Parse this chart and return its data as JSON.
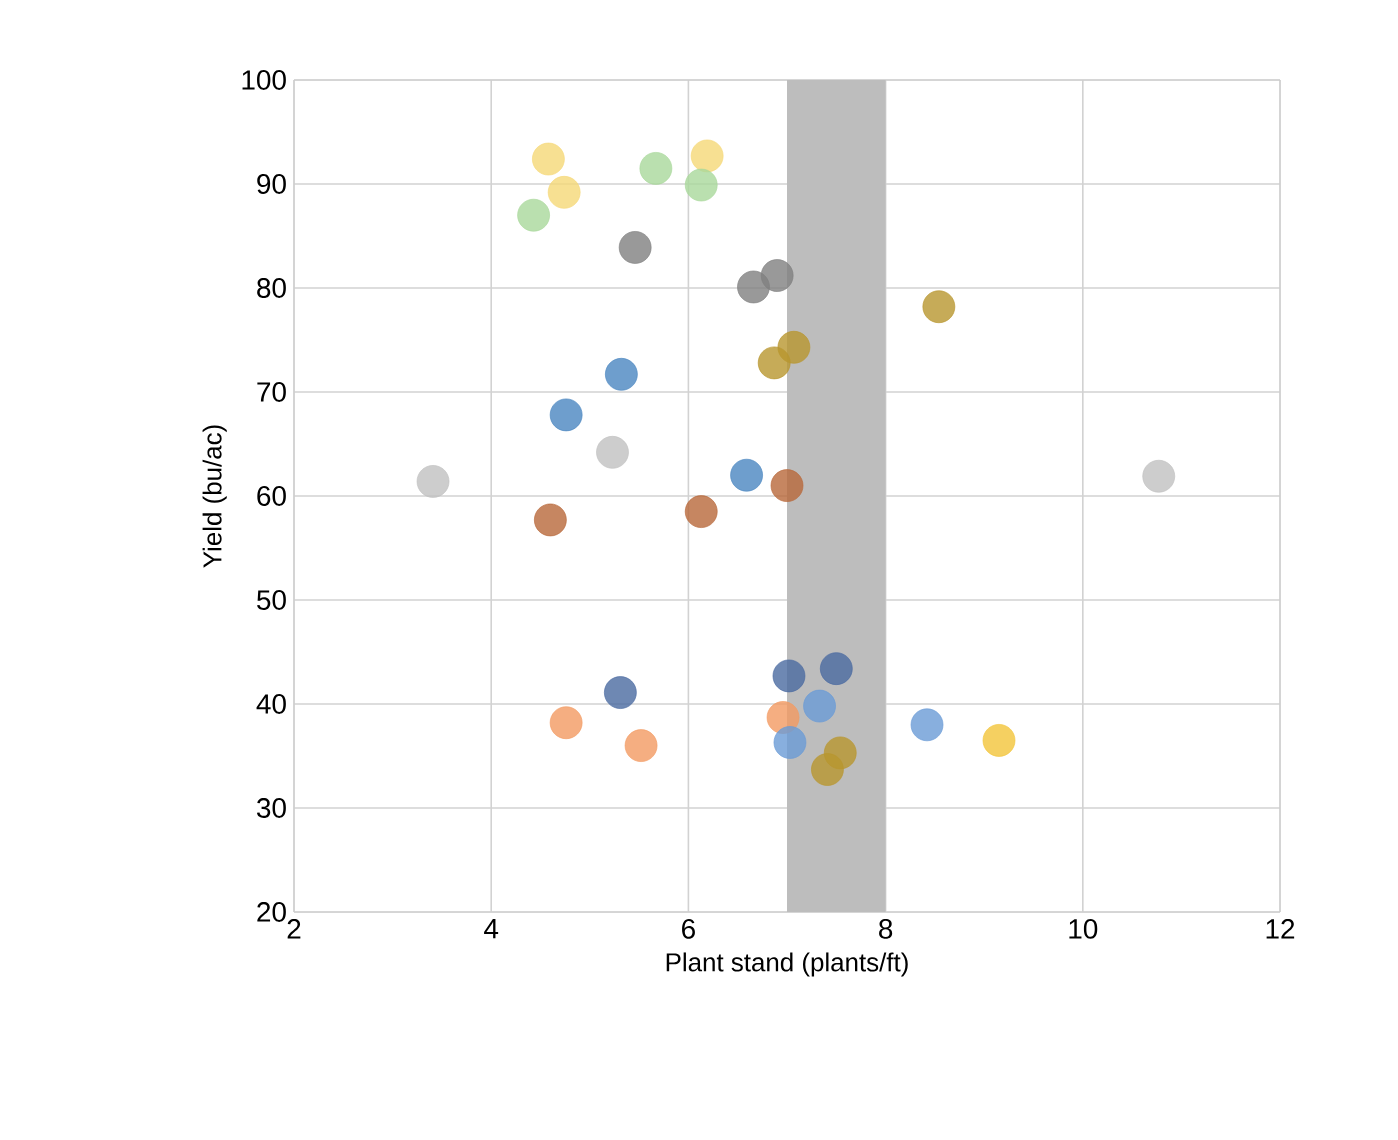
{
  "chart_data": {
    "type": "scatter",
    "xlabel": "Plant stand (plants/ft)",
    "ylabel": "Yield (bu/ac)",
    "xlim": [
      2,
      12
    ],
    "ylim": [
      20,
      100
    ],
    "xticks": [
      2,
      4,
      6,
      8,
      10,
      12
    ],
    "yticks": [
      20,
      30,
      40,
      50,
      60,
      70,
      80,
      90,
      100
    ],
    "grid": true,
    "marker": "circle",
    "bands": [
      {
        "axis": "x",
        "from": 7,
        "to": 8,
        "color": "#bdbdbd"
      }
    ],
    "series": [
      {
        "color": "#f5d877",
        "x": [
          4.58,
          4.74,
          6.19
        ],
        "values": [
          92.4,
          89.2,
          92.7
        ]
      },
      {
        "color": "#a9d89b",
        "x": [
          4.43,
          5.67,
          6.13
        ],
        "values": [
          87.0,
          91.5,
          89.9
        ]
      },
      {
        "color": "#808080",
        "x": [
          5.46,
          6.9,
          6.66
        ],
        "values": [
          83.9,
          81.2,
          80.1
        ]
      },
      {
        "color": "#b8962e",
        "x": [
          7.07,
          6.87,
          8.54,
          7.54,
          7.41
        ],
        "values": [
          74.3,
          72.8,
          78.2,
          35.3,
          33.7
        ]
      },
      {
        "color": "#4a86c0",
        "x": [
          5.32,
          4.76,
          6.59
        ],
        "values": [
          71.7,
          67.8,
          62.0
        ]
      },
      {
        "color": "#c0c0c0",
        "x": [
          5.23,
          3.41,
          10.77
        ],
        "values": [
          64.2,
          61.4,
          61.9
        ]
      },
      {
        "color": "#b8683a",
        "x": [
          7.0,
          6.13,
          4.6
        ],
        "values": [
          61.0,
          58.5,
          57.7
        ]
      },
      {
        "color": "#4a6aa0",
        "x": [
          5.31,
          7.02,
          7.5
        ],
        "values": [
          41.1,
          42.7,
          43.4
        ]
      },
      {
        "color": "#f29a62",
        "x": [
          5.52,
          6.96,
          4.76
        ],
        "values": [
          36.0,
          38.7,
          38.2
        ]
      },
      {
        "color": "#6a9bd6",
        "x": [
          7.33,
          7.03,
          8.42
        ],
        "values": [
          39.8,
          36.3,
          38.0
        ]
      },
      {
        "color": "#f2c43a",
        "x": [
          9.15
        ],
        "values": [
          36.5
        ]
      }
    ]
  }
}
